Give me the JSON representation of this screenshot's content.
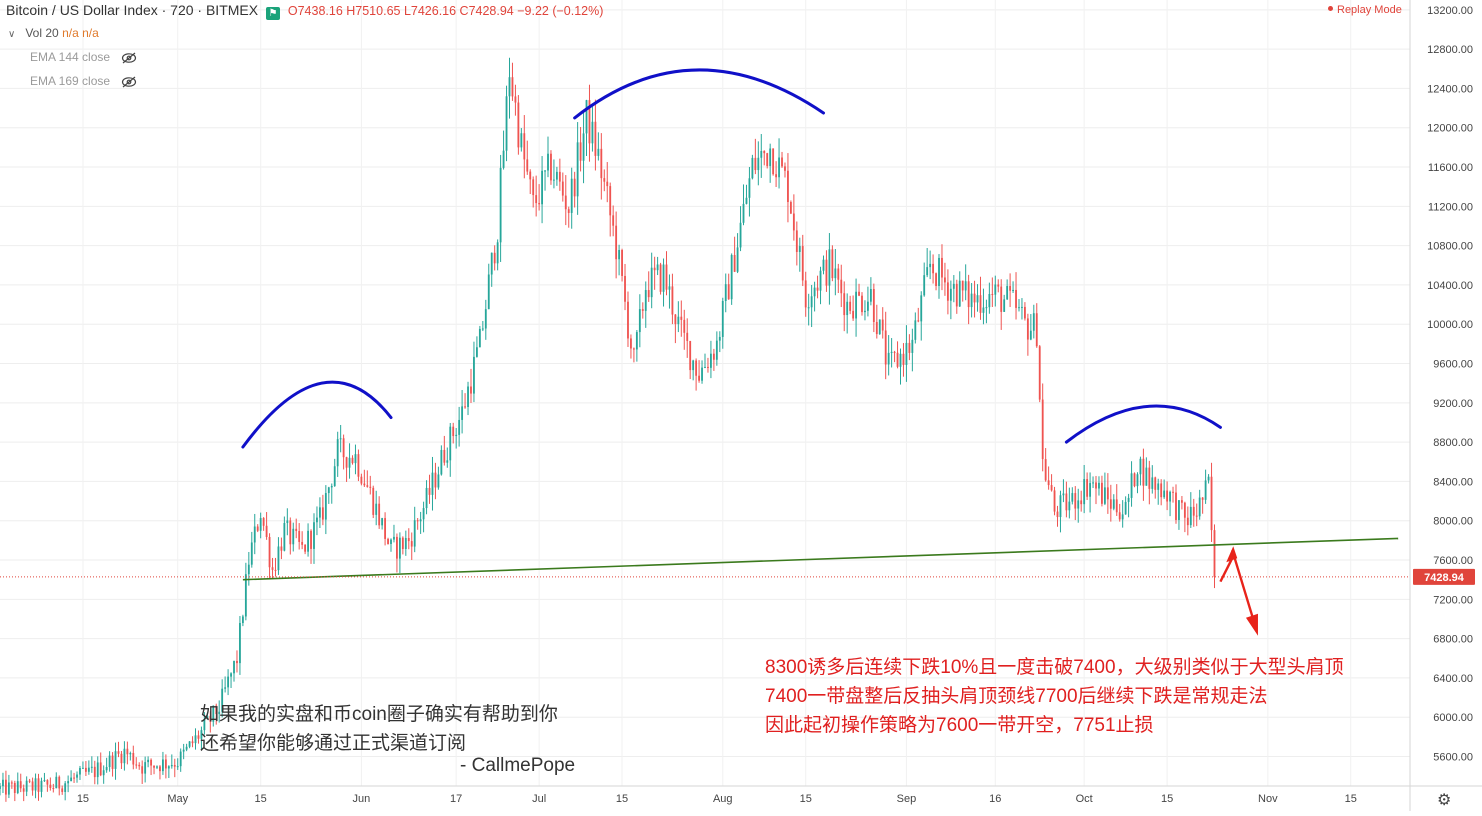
{
  "header": {
    "title": "Bitcoin / US Dollar Index · 720 · BITMEX",
    "flag_glyph": "⚑",
    "ohlc": "O7438.16 H7510.65 L7426.16 C7428.94 −9.22 (−0.12%)"
  },
  "indicators": {
    "vol_label": "Vol 20",
    "vol_values": "n/a n/a",
    "ema1": "EMA 144 close",
    "ema2": "EMA 169 close"
  },
  "replay_mode": "Replay Mode",
  "annotations": {
    "chinese_left_line1": "如果我的实盘和币coin圈子确实有帮助到你",
    "chinese_left_line2": "还希望你能够通过正式渠道订阅",
    "signature": "- CallmePope",
    "red_line1": "8300诱多后连续下跌10%且一度击破7400，大级别类似于大型头肩顶",
    "red_line2": "7400一带盘整后反抽头肩顶颈线7700后继续下跌是常规走法",
    "red_line3": "因此起初操作策略为7600一带开空，7751止损"
  },
  "colors": {
    "up": "#26a69a",
    "down": "#ef5350",
    "shoulder_arc": "#1010c8",
    "neckline": "#3b7a1d",
    "arrow": "#e8231a",
    "price_line": "#e0443b"
  },
  "chart_data": {
    "type": "candlestick",
    "title": "Bitcoin / US Dollar Index · 720 · BITMEX",
    "ylim": [
      5300,
      13300
    ],
    "y_ticks": [
      "13200.00",
      "12800.00",
      "12400.00",
      "12000.00",
      "11600.00",
      "11200.00",
      "10800.00",
      "10400.00",
      "10000.00",
      "9600.00",
      "9200.00",
      "8800.00",
      "8400.00",
      "8000.00",
      "7600.00",
      "7200.00",
      "6800.00",
      "6400.00",
      "6000.00",
      "5600.00"
    ],
    "x_ticks": [
      "15",
      "May",
      "15",
      "Jun",
      "17",
      "Jul",
      "15",
      "Aug",
      "15",
      "Sep",
      "16",
      "Oct",
      "15",
      "Nov",
      "15"
    ],
    "x_range": [
      "2019-04-01",
      "2019-11-25"
    ],
    "last_price": "7428.94",
    "last_value": 7428.94,
    "neckline": [
      [
        "2019-05-12",
        7400
      ],
      [
        "2019-11-23",
        7820
      ]
    ],
    "price_path": [
      [
        "2019-04-01",
        5270
      ],
      [
        "2019-04-10",
        5300
      ],
      [
        "2019-04-17",
        5450
      ],
      [
        "2019-04-22",
        5650
      ],
      [
        "2019-04-25",
        5500
      ],
      [
        "2019-05-01",
        5550
      ],
      [
        "2019-05-05",
        5850
      ],
      [
        "2019-05-08",
        6100
      ],
      [
        "2019-05-11",
        6600
      ],
      [
        "2019-05-13",
        7600
      ],
      [
        "2019-05-15",
        8100
      ],
      [
        "2019-05-17",
        7500
      ],
      [
        "2019-05-19",
        7900
      ],
      [
        "2019-05-22",
        7700
      ],
      [
        "2019-05-25",
        8000
      ],
      [
        "2019-05-28",
        8700
      ],
      [
        "2019-05-31",
        8650
      ],
      [
        "2019-06-03",
        8200
      ],
      [
        "2019-06-06",
        7700
      ],
      [
        "2019-06-09",
        7800
      ],
      [
        "2019-06-12",
        8200
      ],
      [
        "2019-06-15",
        8700
      ],
      [
        "2019-06-18",
        9100
      ],
      [
        "2019-06-21",
        9800
      ],
      [
        "2019-06-24",
        11000
      ],
      [
        "2019-06-26",
        12600
      ],
      [
        "2019-06-28",
        11800
      ],
      [
        "2019-06-30",
        11200
      ],
      [
        "2019-07-03",
        11600
      ],
      [
        "2019-07-06",
        11200
      ],
      [
        "2019-07-09",
        12100
      ],
      [
        "2019-07-11",
        11700
      ],
      [
        "2019-07-14",
        10800
      ],
      [
        "2019-07-17",
        9600
      ],
      [
        "2019-07-19",
        10400
      ],
      [
        "2019-07-22",
        10500
      ],
      [
        "2019-07-25",
        9900
      ],
      [
        "2019-07-28",
        9500
      ],
      [
        "2019-07-31",
        9800
      ],
      [
        "2019-08-03",
        10700
      ],
      [
        "2019-08-06",
        11600
      ],
      [
        "2019-08-09",
        11800
      ],
      [
        "2019-08-12",
        11400
      ],
      [
        "2019-08-15",
        10300
      ],
      [
        "2019-08-19",
        10600
      ],
      [
        "2019-08-22",
        10200
      ],
      [
        "2019-08-26",
        10300
      ],
      [
        "2019-08-29",
        9550
      ],
      [
        "2019-09-02",
        9800
      ],
      [
        "2019-09-05",
        10600
      ],
      [
        "2019-09-08",
        10400
      ],
      [
        "2019-09-12",
        10250
      ],
      [
        "2019-09-16",
        10300
      ],
      [
        "2019-09-19",
        10200
      ],
      [
        "2019-09-21",
        10000
      ],
      [
        "2019-09-23",
        9950
      ],
      [
        "2019-09-24",
        8600
      ],
      [
        "2019-09-26",
        8100
      ],
      [
        "2019-09-29",
        8200
      ],
      [
        "2019-10-02",
        8400
      ],
      [
        "2019-10-05",
        8200
      ],
      [
        "2019-10-08",
        8100
      ],
      [
        "2019-10-10",
        8600
      ],
      [
        "2019-10-12",
        8400
      ],
      [
        "2019-10-15",
        8300
      ],
      [
        "2019-10-18",
        8000
      ],
      [
        "2019-10-20",
        8100
      ],
      [
        "2019-10-22",
        8350
      ],
      [
        "2019-10-23",
        7430
      ]
    ],
    "series": [
      {
        "name": "Bitcoin / US Dollar Index",
        "values_note": ""
      }
    ]
  }
}
